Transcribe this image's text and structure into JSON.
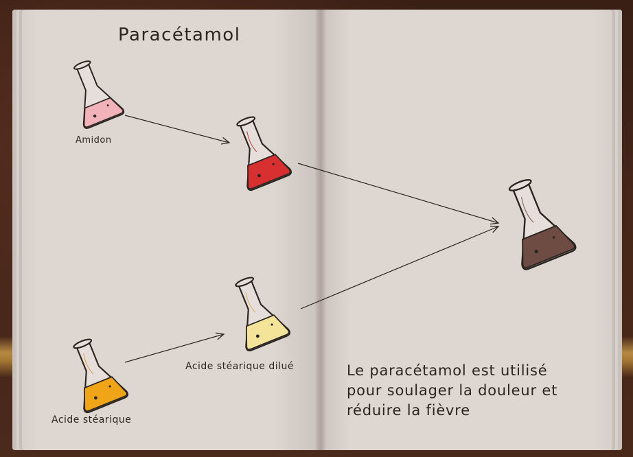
{
  "recipe": {
    "title": "Paracétamol",
    "ingredients": {
      "amidon": {
        "label": "Amidon",
        "liquid_color": "#f2b2ba"
      },
      "stearic_acid": {
        "label": "Acide stéarique",
        "liquid_color": "#f0a418"
      },
      "red_intermediate": {
        "label": "",
        "liquid_color": "#d83030"
      },
      "diluted_stearic_acid": {
        "label": "Acide stéarique dilué",
        "liquid_color": "#f3e49a"
      },
      "result": {
        "label": "",
        "liquid_color": "#6e4c44"
      }
    },
    "description": {
      "line1": "Le paracétamol est utilisé",
      "line2": "pour soulager la douleur et",
      "line3": "réduire la fièvre"
    }
  }
}
